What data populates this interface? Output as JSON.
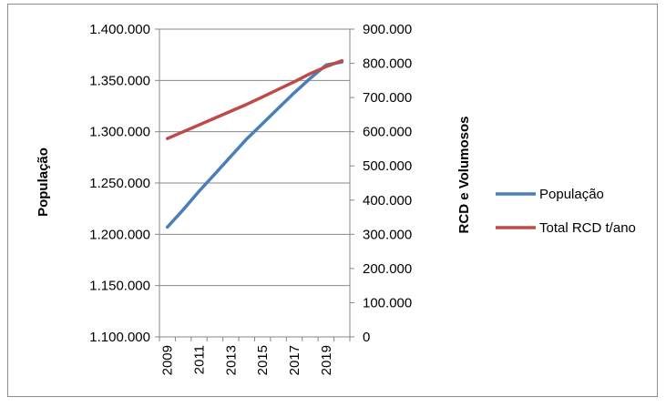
{
  "chart_data": {
    "type": "line",
    "x": [
      2009,
      2010,
      2011,
      2012,
      2013,
      2014,
      2015,
      2016,
      2017,
      2018,
      2019,
      2020
    ],
    "x_tick_labels": [
      "2009",
      "2011",
      "2013",
      "2015",
      "2017",
      "2019"
    ],
    "series": [
      {
        "name": "População",
        "axis": "left",
        "color": "#4a7ebb",
        "values": [
          1207000,
          1224000,
          1242000,
          1259000,
          1276000,
          1293000,
          1308000,
          1323000,
          1338000,
          1352000,
          1365000,
          1368000
        ]
      },
      {
        "name": "Total RCD t/ano",
        "axis": "right",
        "color": "#be4b48",
        "values": [
          580000,
          600000,
          620000,
          640000,
          660000,
          680000,
          702000,
          724000,
          746000,
          770000,
          790000,
          808000
        ]
      }
    ],
    "y_left": {
      "label": "População",
      "ylim": [
        1100000,
        1400000
      ],
      "ticks": [
        1100000,
        1150000,
        1200000,
        1250000,
        1300000,
        1350000,
        1400000
      ],
      "tick_labels": [
        "1.100.000",
        "1.150.000",
        "1.200.000",
        "1.250.000",
        "1.300.000",
        "1.350.000",
        "1.400.000"
      ]
    },
    "y_right": {
      "label": "RCD e Volumosos",
      "ylim": [
        0,
        900000
      ],
      "ticks": [
        0,
        100000,
        200000,
        300000,
        400000,
        500000,
        600000,
        700000,
        800000,
        900000
      ],
      "tick_labels": [
        "0",
        "100.000",
        "200.000",
        "300.000",
        "400.000",
        "500.000",
        "600.000",
        "700.000",
        "800.000",
        "900.000"
      ]
    },
    "grid": "horizontal major (left axis)",
    "legend_position": "right"
  }
}
